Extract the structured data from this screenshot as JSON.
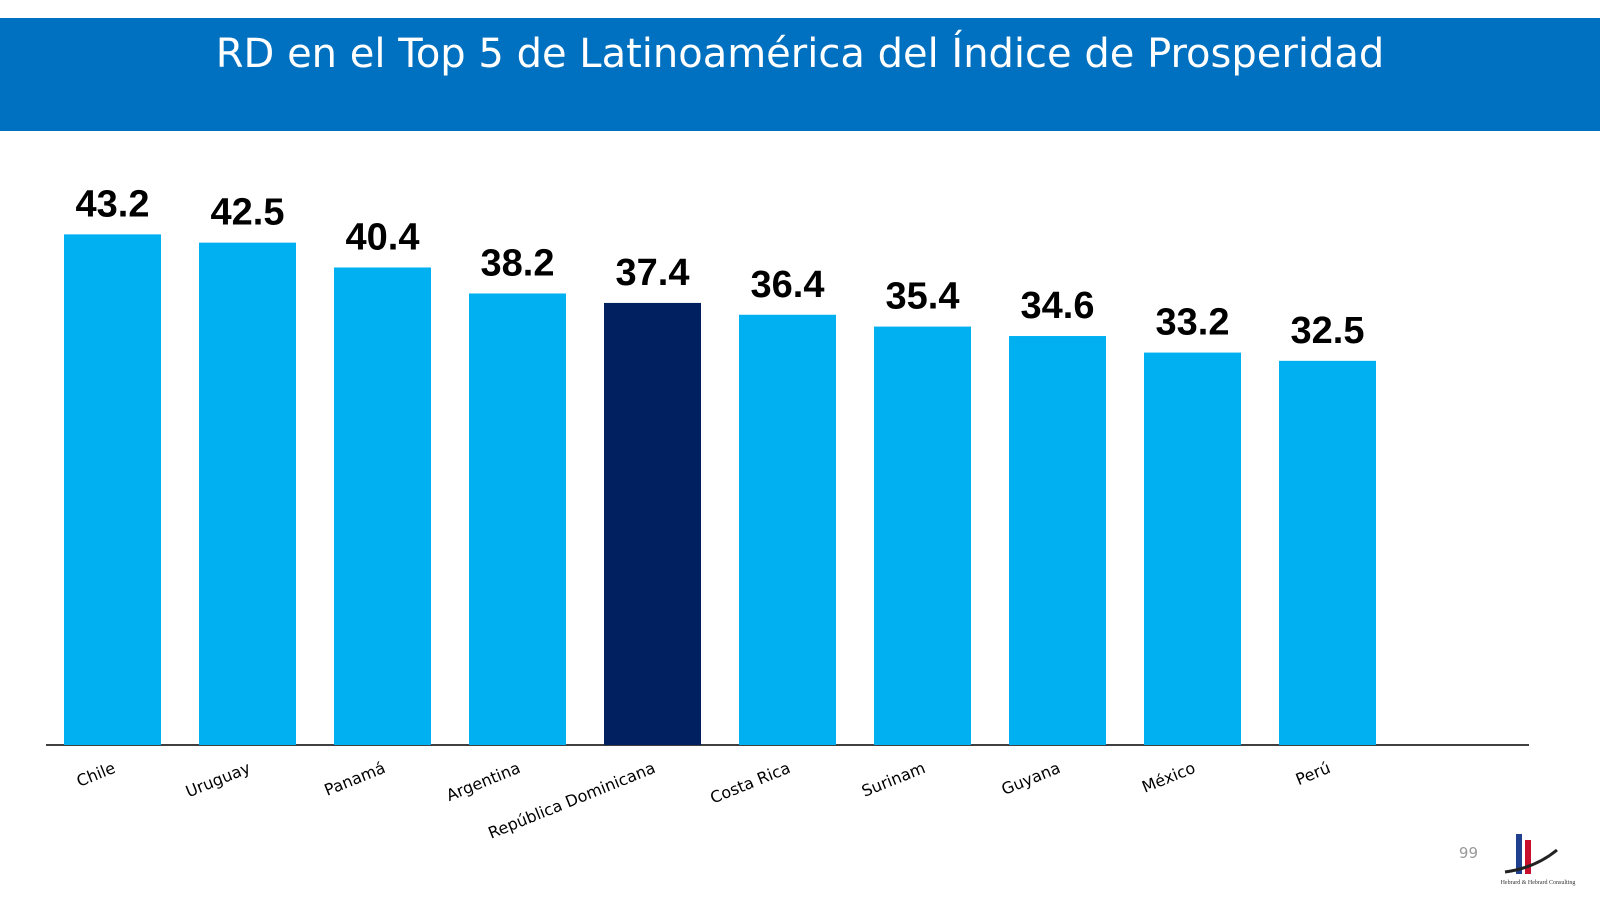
{
  "chart_data": {
    "type": "bar",
    "title": "RD en el Top 5 de Latinoamérica del Índice de Prosperidad",
    "categories": [
      "Chile",
      "Uruguay",
      "Panamá",
      "Argentina",
      "República Dominicana",
      "Costa Rica",
      "Surinam",
      "Guyana",
      "México",
      "Perú"
    ],
    "values": [
      43.2,
      42.5,
      40.4,
      38.2,
      37.4,
      36.4,
      35.4,
      34.6,
      33.2,
      32.5
    ],
    "colors": [
      "#00b0f0",
      "#00b0f0",
      "#00b0f0",
      "#00b0f0",
      "#002060",
      "#00b0f0",
      "#00b0f0",
      "#00b0f0",
      "#00b0f0",
      "#00b0f0"
    ],
    "ylim": [
      0,
      50
    ]
  },
  "footer": {
    "page_number": "99",
    "logo_text": "Hebrard & Hebrard Consulting"
  }
}
